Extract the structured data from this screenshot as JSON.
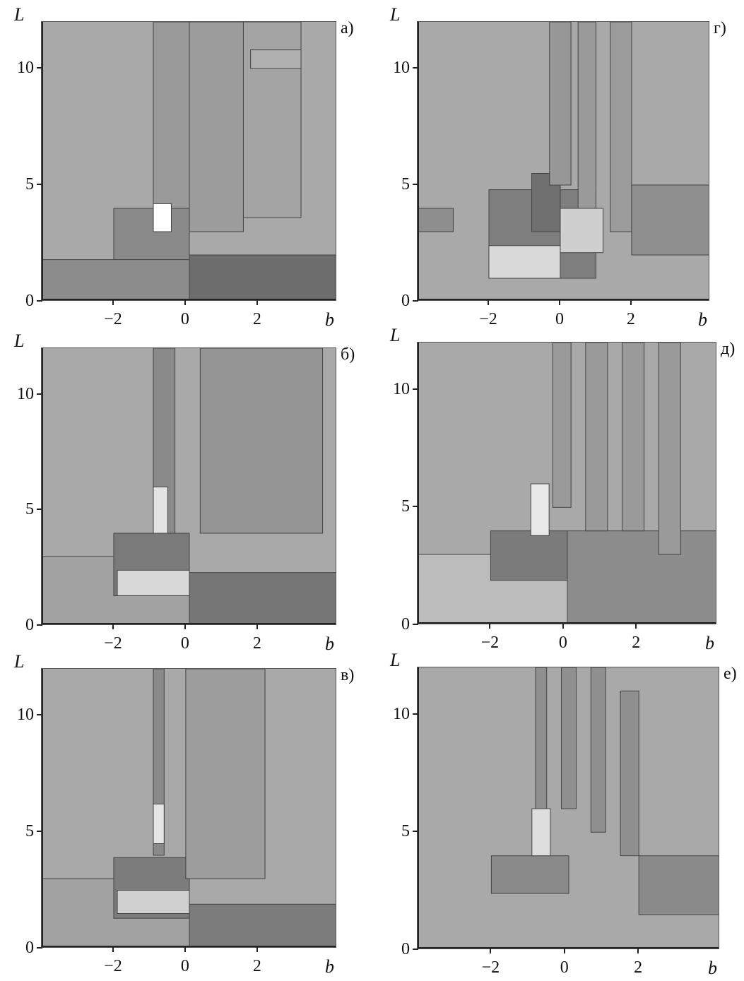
{
  "chart_data": [
    {
      "type": "heatmap",
      "panel_label": "а)",
      "xlabel": "b",
      "ylabel": "L",
      "xlim": [
        -4,
        4.2
      ],
      "ylim": [
        0,
        12
      ],
      "xticks": [
        "−2",
        "0",
        "2"
      ],
      "xtick_values": [
        -2,
        0,
        2
      ],
      "yticks": [
        "0",
        "5",
        "10"
      ],
      "ytick_values": [
        0,
        5,
        10
      ],
      "regions": [
        {
          "x0": -0.9,
          "x1": 0.1,
          "y0": 4.0,
          "y1": 12.0,
          "shade": "#9a9a9a"
        },
        {
          "x0": 0.1,
          "x1": 1.6,
          "y0": 3.0,
          "y1": 12.0,
          "shade": "#9c9c9c"
        },
        {
          "x0": 1.6,
          "x1": 3.2,
          "y0": 3.6,
          "y1": 12.0,
          "shade": "#a4a4a4"
        },
        {
          "x0": -2.0,
          "x1": 0.1,
          "y0": 1.2,
          "y1": 4.0,
          "shade": "#8a8a8a"
        },
        {
          "x0": -0.9,
          "x1": -0.4,
          "y0": 3.0,
          "y1": 4.2,
          "shade": "#ffffff"
        },
        {
          "x0": -4.0,
          "x1": 0.1,
          "y0": 0.0,
          "y1": 1.8,
          "shade": "#8c8c8c"
        },
        {
          "x0": 0.1,
          "x1": 4.2,
          "y0": 0.0,
          "y1": 2.0,
          "shade": "#6d6d6d"
        },
        {
          "x0": 1.8,
          "x1": 3.2,
          "y0": 10.0,
          "y1": 10.8,
          "shade": "#b0b0b0"
        }
      ]
    },
    {
      "type": "heatmap",
      "panel_label": "б)",
      "xlabel": "b",
      "ylabel": "L",
      "xlim": [
        -4,
        4.2
      ],
      "ylim": [
        0,
        12
      ],
      "xticks": [
        "−2",
        "0",
        "2"
      ],
      "xtick_values": [
        -2,
        0,
        2
      ],
      "yticks": [
        "0",
        "5",
        "10"
      ],
      "ytick_values": [
        0,
        5,
        10
      ],
      "regions": [
        {
          "x0": -4.0,
          "x1": 0.1,
          "y0": 0.0,
          "y1": 3.0,
          "shade": "#a2a2a2"
        },
        {
          "x0": -0.9,
          "x1": -0.3,
          "y0": 4.0,
          "y1": 12.0,
          "shade": "#8a8a8a"
        },
        {
          "x0": -2.0,
          "x1": 0.1,
          "y0": 1.3,
          "y1": 4.0,
          "shade": "#7a7a7a"
        },
        {
          "x0": -1.9,
          "x1": 0.1,
          "y0": 1.3,
          "y1": 2.4,
          "shade": "#d8d8d8"
        },
        {
          "x0": -0.9,
          "x1": -0.5,
          "y0": 4.0,
          "y1": 6.0,
          "shade": "#e4e4e4"
        },
        {
          "x0": 0.1,
          "x1": 4.2,
          "y0": 0.0,
          "y1": 2.3,
          "shade": "#767676"
        },
        {
          "x0": 0.4,
          "x1": 3.8,
          "y0": 4.0,
          "y1": 12.0,
          "shade": "#959595"
        }
      ]
    },
    {
      "type": "heatmap",
      "panel_label": "в)",
      "xlabel": "b",
      "ylabel": "L",
      "xlim": [
        -4,
        4.2
      ],
      "ylim": [
        0,
        12
      ],
      "xticks": [
        "−2",
        "0",
        "2"
      ],
      "xtick_values": [
        -2,
        0,
        2
      ],
      "yticks": [
        "0",
        "5",
        "10"
      ],
      "ytick_values": [
        0,
        5,
        10
      ],
      "regions": [
        {
          "x0": -4.0,
          "x1": 0.1,
          "y0": 0.0,
          "y1": 3.0,
          "shade": "#a2a2a2"
        },
        {
          "x0": -0.9,
          "x1": -0.6,
          "y0": 4.0,
          "y1": 12.0,
          "shade": "#8a8a8a"
        },
        {
          "x0": -2.0,
          "x1": 0.1,
          "y0": 1.3,
          "y1": 3.9,
          "shade": "#7c7c7c"
        },
        {
          "x0": -1.9,
          "x1": 0.1,
          "y0": 1.5,
          "y1": 2.5,
          "shade": "#d0d0d0"
        },
        {
          "x0": -0.9,
          "x1": -0.6,
          "y0": 4.5,
          "y1": 6.2,
          "shade": "#e6e6e6"
        },
        {
          "x0": 0.1,
          "x1": 4.2,
          "y0": 0.0,
          "y1": 1.9,
          "shade": "#7c7c7c"
        },
        {
          "x0": 0.0,
          "x1": 2.2,
          "y0": 3.0,
          "y1": 12.0,
          "shade": "#9d9d9d"
        }
      ]
    },
    {
      "type": "heatmap",
      "panel_label": "г)",
      "xlabel": "b",
      "ylabel": "L",
      "xlim": [
        -4,
        4.2
      ],
      "ylim": [
        0,
        12
      ],
      "xticks": [
        "−2",
        "0",
        "2"
      ],
      "xtick_values": [
        -2,
        0,
        2
      ],
      "yticks": [
        "0",
        "5",
        "10"
      ],
      "ytick_values": [
        0,
        5,
        10
      ],
      "regions": [
        {
          "x0": -4.0,
          "x1": -3.0,
          "y0": 3.0,
          "y1": 4.0,
          "shade": "#8e8e8e"
        },
        {
          "x0": -2.0,
          "x1": 1.0,
          "y0": 1.0,
          "y1": 4.8,
          "shade": "#7e7e7e"
        },
        {
          "x0": -2.0,
          "x1": 0.0,
          "y0": 1.0,
          "y1": 2.4,
          "shade": "#dadada"
        },
        {
          "x0": -0.8,
          "x1": 0.0,
          "y0": 3.0,
          "y1": 5.5,
          "shade": "#6f6f6f"
        },
        {
          "x0": 0.0,
          "x1": 1.2,
          "y0": 2.1,
          "y1": 4.0,
          "shade": "#cfcfcf"
        },
        {
          "x0": -0.3,
          "x1": 0.3,
          "y0": 5.0,
          "y1": 12.0,
          "shade": "#979797"
        },
        {
          "x0": 0.5,
          "x1": 1.0,
          "y0": 4.0,
          "y1": 12.0,
          "shade": "#9a9a9a"
        },
        {
          "x0": 1.4,
          "x1": 2.0,
          "y0": 3.0,
          "y1": 12.0,
          "shade": "#9b9b9b"
        },
        {
          "x0": 2.0,
          "x1": 4.2,
          "y0": 2.0,
          "y1": 5.0,
          "shade": "#8f8f8f"
        }
      ]
    },
    {
      "type": "heatmap",
      "panel_label": "д)",
      "xlabel": "b",
      "ylabel": "L",
      "xlim": [
        -4,
        4.2
      ],
      "ylim": [
        0,
        12
      ],
      "xticks": [
        "−2",
        "0",
        "2"
      ],
      "xtick_values": [
        -2,
        0,
        2
      ],
      "yticks": [
        "0",
        "5",
        "10"
      ],
      "ytick_values": [
        0,
        5,
        10
      ],
      "regions": [
        {
          "x0": -4.0,
          "x1": 0.1,
          "y0": 0.0,
          "y1": 3.0,
          "shade": "#bcbcbc"
        },
        {
          "x0": 0.1,
          "x1": 4.2,
          "y0": 0.0,
          "y1": 4.0,
          "shade": "#8c8c8c"
        },
        {
          "x0": -2.0,
          "x1": 0.1,
          "y0": 1.9,
          "y1": 4.0,
          "shade": "#7b7b7b"
        },
        {
          "x0": -0.9,
          "x1": -0.4,
          "y0": 3.8,
          "y1": 6.0,
          "shade": "#e8e8e8"
        },
        {
          "x0": -0.3,
          "x1": 0.2,
          "y0": 5.0,
          "y1": 12.0,
          "shade": "#9a9a9a"
        },
        {
          "x0": 0.6,
          "x1": 1.2,
          "y0": 4.0,
          "y1": 12.0,
          "shade": "#9a9a9a"
        },
        {
          "x0": 1.6,
          "x1": 2.2,
          "y0": 4.0,
          "y1": 12.0,
          "shade": "#9a9a9a"
        },
        {
          "x0": 2.6,
          "x1": 3.2,
          "y0": 3.0,
          "y1": 12.0,
          "shade": "#9a9a9a"
        }
      ]
    },
    {
      "type": "heatmap",
      "panel_label": "е)",
      "xlabel": "b",
      "ylabel": "L",
      "xlim": [
        -4,
        4.2
      ],
      "ylim": [
        0,
        12
      ],
      "xticks": [
        "−2",
        "0",
        "2"
      ],
      "xtick_values": [
        -2,
        0,
        2
      ],
      "yticks": [
        "0",
        "5",
        "10"
      ],
      "ytick_values": [
        0,
        5,
        10
      ],
      "regions": [
        {
          "x0": -2.0,
          "x1": 0.1,
          "y0": 2.4,
          "y1": 4.0,
          "shade": "#8a8a8a"
        },
        {
          "x0": -0.9,
          "x1": -0.4,
          "y0": 4.0,
          "y1": 6.0,
          "shade": "#dedede"
        },
        {
          "x0": -0.8,
          "x1": -0.5,
          "y0": 6.0,
          "y1": 12.0,
          "shade": "#8f8f8f"
        },
        {
          "x0": -0.1,
          "x1": 0.3,
          "y0": 6.0,
          "y1": 12.0,
          "shade": "#8f8f8f"
        },
        {
          "x0": 0.7,
          "x1": 1.1,
          "y0": 5.0,
          "y1": 12.0,
          "shade": "#8f8f8f"
        },
        {
          "x0": 1.5,
          "x1": 2.0,
          "y0": 4.0,
          "y1": 11.0,
          "shade": "#8f8f8f"
        },
        {
          "x0": 2.0,
          "x1": 4.2,
          "y0": 1.5,
          "y1": 4.0,
          "shade": "#8a8a8a"
        }
      ]
    }
  ]
}
